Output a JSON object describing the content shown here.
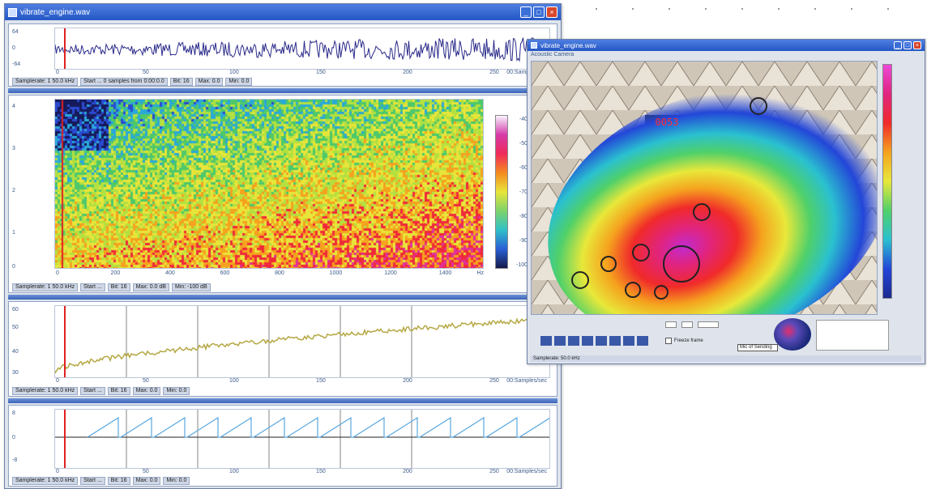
{
  "left_window": {
    "title": "vibrate_engine.wav",
    "panes": [
      {
        "name": "waveform",
        "y_labels": [
          "64",
          "0",
          "-64"
        ],
        "x_ticks": [
          "0",
          "50",
          "100",
          "150",
          "200",
          "250"
        ],
        "x_end_label": "00:Samples/sec",
        "status": [
          "Samplerate: 1 50.0 kHz",
          "Start ... 0 samples from 0:00:0.0",
          "Bit: 16",
          "Max: 0.0",
          "Min: 0.0"
        ]
      },
      {
        "name": "spectrogram",
        "y_labels": [
          "4",
          "3",
          "2",
          "1",
          "0"
        ],
        "x_ticks": [
          "0",
          "200",
          "400",
          "600",
          "800",
          "1000",
          "1200",
          "1400"
        ],
        "x_end_label": "Hz",
        "colorbar_labels": [
          "-40",
          "-50",
          "-60",
          "-70",
          "-80",
          "-90",
          "-100"
        ],
        "status": [
          "Samplerate: 1 50.0 kHz",
          "Start ...",
          "Bit: 16",
          "Max: 0.0 dB",
          "Min: -100 dB"
        ]
      },
      {
        "name": "level",
        "y_labels": [
          "60",
          "50",
          "40",
          "30"
        ],
        "x_ticks": [
          "0",
          "50",
          "100",
          "150",
          "200",
          "250"
        ],
        "x_end_label": "00:Samples/sec",
        "status": [
          "Samplerate: 1 50.0 kHz",
          "Start ...",
          "Bit: 16",
          "Max: 0.0",
          "Min: 0.0"
        ]
      },
      {
        "name": "sawtooth",
        "y_labels": [
          "8",
          "0",
          "-8"
        ],
        "x_ticks": [
          "0",
          "50",
          "100",
          "150",
          "200",
          "250"
        ],
        "x_end_label": "00:Samples/sec",
        "status": [
          "Samplerate: 1 50.0 kHz",
          "Start ...",
          "Bit: 16",
          "Max: 0.0",
          "Min: 0.0"
        ]
      }
    ]
  },
  "right_window": {
    "title": "vibrate_engine.wav",
    "subtitle": "Acoustic Camera",
    "display_value": "0053",
    "colorbar_labels": [
      "",
      "",
      "",
      "",
      "",
      "",
      "",
      "",
      "",
      "",
      "",
      ""
    ],
    "controls": {
      "checkbox_label": "Freeze frame",
      "input_label": "Mic of Sending"
    },
    "status": "Samplerate: 50.0 kHz"
  },
  "colors": {
    "accent": "#2457c6",
    "bg": "#dfe4ec"
  }
}
